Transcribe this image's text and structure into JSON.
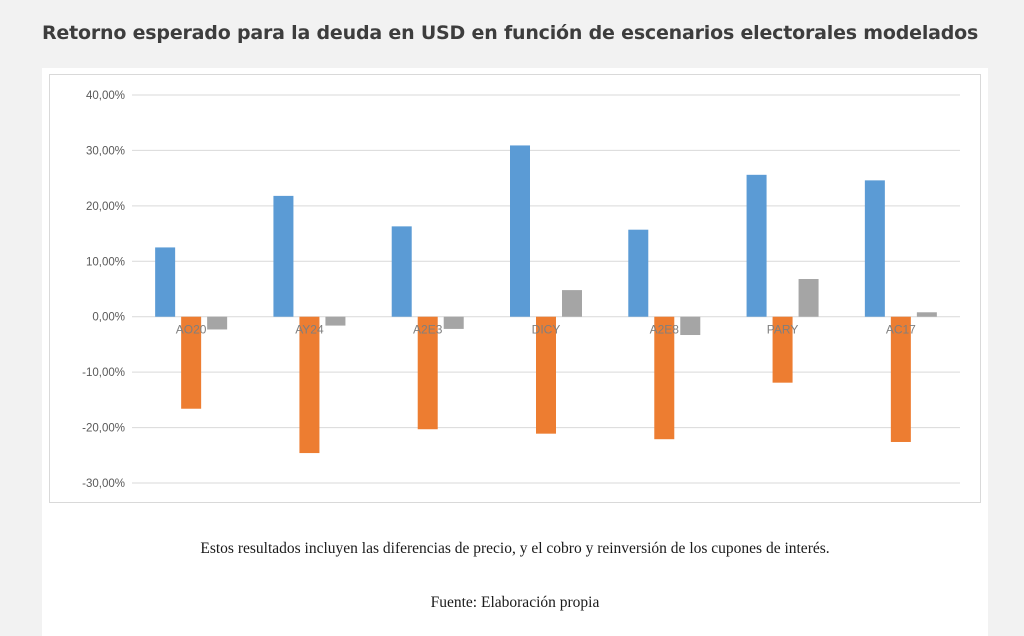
{
  "page": {
    "title": "Retorno esperado para la deuda en USD en función de escenarios electorales modelados",
    "note": "Estos resultados incluyen las diferencias de precio, y el cobro y reinversión de los cupones de interés.",
    "source": "Fuente: Elaboración propia"
  },
  "chart_data": {
    "type": "bar",
    "title": "",
    "xlabel": "",
    "ylabel": "",
    "categories": [
      "AO20",
      "AY24",
      "A2E3",
      "DICY",
      "A2E8",
      "PARY",
      "AC17"
    ],
    "series": [
      {
        "values": [
          12.5,
          21.8,
          16.3,
          30.9,
          15.7,
          25.6,
          24.6
        ],
        "color": "#5b9bd5"
      },
      {
        "values": [
          -16.6,
          -24.6,
          -20.3,
          -21.1,
          -22.1,
          -11.9,
          -22.6
        ],
        "color": "#ed7d31"
      },
      {
        "values": [
          -2.3,
          -1.6,
          -2.2,
          4.8,
          -3.3,
          6.8,
          0.8
        ],
        "color": "#a5a5a5"
      }
    ],
    "ylim": [
      -30,
      40
    ],
    "yticks": [
      40,
      30,
      20,
      10,
      0,
      -10,
      -20,
      -30
    ],
    "ytick_labels": [
      "40,00%",
      "30,00%",
      "20,00%",
      "10,00%",
      "0,00%",
      "-10,00%",
      "-20,00%",
      "-30,00%"
    ],
    "grid": true,
    "legend": "none"
  }
}
